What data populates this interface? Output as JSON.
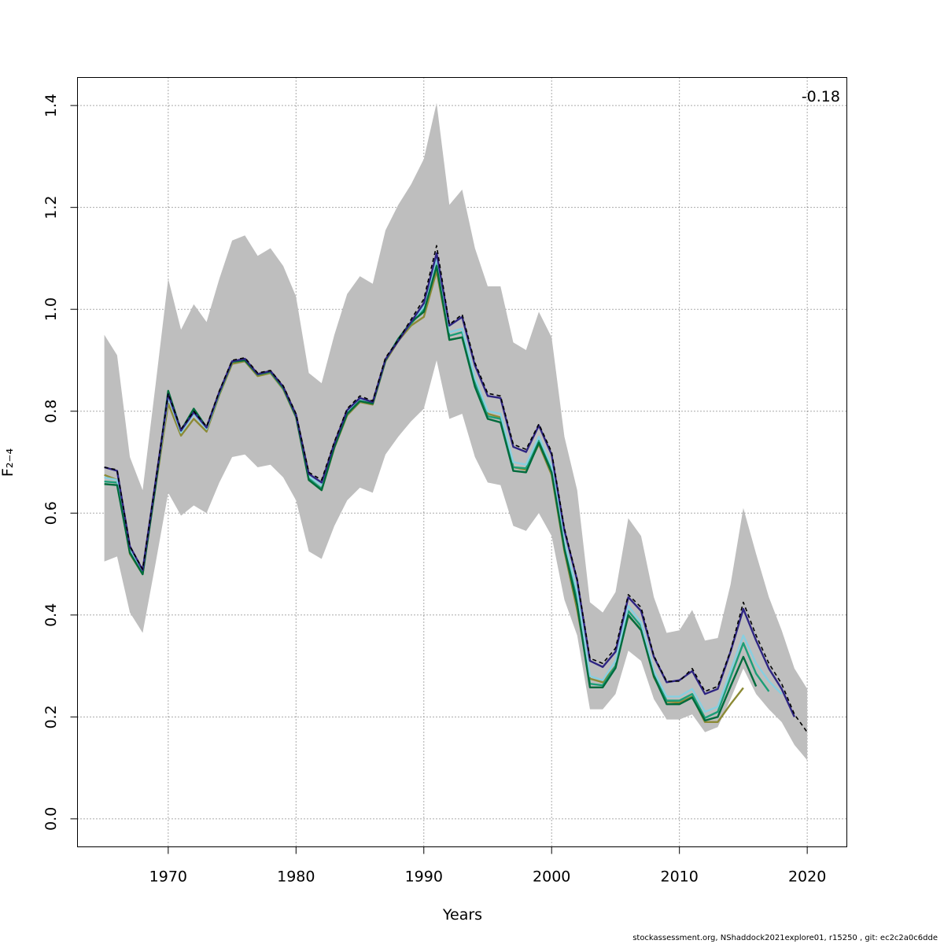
{
  "chart_data": {
    "type": "line",
    "xlabel": "Years",
    "ylabel": "F̅₂₋₄",
    "xlim": [
      1962.9,
      2023.1
    ],
    "ylim": [
      -0.055,
      1.455
    ],
    "x_ticks": [
      "1970",
      "1980",
      "1990",
      "2000",
      "2010",
      "2020"
    ],
    "y_ticks": [
      "0.0",
      "0.2",
      "0.4",
      "0.6",
      "0.8",
      "1.0",
      "1.2",
      "1.4"
    ],
    "grid": true,
    "annotation": "-0.18",
    "confidence_band": {
      "years": [
        1965,
        1966,
        1967,
        1968,
        1969,
        1970,
        1971,
        1972,
        1973,
        1974,
        1975,
        1976,
        1977,
        1978,
        1979,
        1980,
        1981,
        1982,
        1983,
        1984,
        1985,
        1986,
        1987,
        1988,
        1989,
        1990,
        1991,
        1992,
        1993,
        1994,
        1995,
        1996,
        1997,
        1998,
        1999,
        2000,
        2001,
        2002,
        2003,
        2004,
        2005,
        2006,
        2007,
        2008,
        2009,
        2010,
        2011,
        2012,
        2013,
        2014,
        2015,
        2016,
        2017,
        2018,
        2019,
        2020
      ],
      "lower": [
        0.505,
        0.515,
        0.405,
        0.365,
        0.5,
        0.64,
        0.595,
        0.615,
        0.6,
        0.66,
        0.71,
        0.715,
        0.69,
        0.695,
        0.67,
        0.625,
        0.525,
        0.51,
        0.575,
        0.625,
        0.65,
        0.64,
        0.715,
        0.75,
        0.78,
        0.805,
        0.9,
        0.785,
        0.795,
        0.71,
        0.66,
        0.655,
        0.575,
        0.565,
        0.6,
        0.555,
        0.43,
        0.36,
        0.215,
        0.215,
        0.245,
        0.33,
        0.31,
        0.235,
        0.195,
        0.195,
        0.205,
        0.17,
        0.18,
        0.235,
        0.295,
        0.245,
        0.215,
        0.19,
        0.145,
        0.115
      ],
      "upper": [
        0.95,
        0.91,
        0.71,
        0.645,
        0.85,
        1.06,
        0.96,
        1.01,
        0.975,
        1.06,
        1.135,
        1.145,
        1.105,
        1.12,
        1.085,
        1.025,
        0.875,
        0.855,
        0.95,
        1.03,
        1.065,
        1.05,
        1.155,
        1.205,
        1.245,
        1.295,
        1.405,
        1.205,
        1.235,
        1.12,
        1.045,
        1.045,
        0.935,
        0.92,
        0.995,
        0.945,
        0.75,
        0.645,
        0.425,
        0.405,
        0.445,
        0.59,
        0.555,
        0.435,
        0.365,
        0.37,
        0.41,
        0.35,
        0.355,
        0.46,
        0.61,
        0.52,
        0.435,
        0.37,
        0.295,
        0.255
      ]
    },
    "series": [
      {
        "color": "#000000",
        "dashed": true,
        "years_start": 1965,
        "values": [
          0.69,
          0.685,
          0.535,
          0.49,
          0.66,
          0.835,
          0.765,
          0.8,
          0.77,
          0.84,
          0.9,
          0.905,
          0.875,
          0.88,
          0.85,
          0.795,
          0.68,
          0.665,
          0.74,
          0.805,
          0.83,
          0.82,
          0.905,
          0.94,
          0.98,
          1.02,
          1.125,
          0.97,
          0.99,
          0.895,
          0.835,
          0.83,
          0.735,
          0.725,
          0.775,
          0.72,
          0.57,
          0.47,
          0.315,
          0.305,
          0.335,
          0.44,
          0.415,
          0.32,
          0.27,
          0.27,
          0.295,
          0.25,
          0.26,
          0.33,
          0.425,
          0.36,
          0.305,
          0.265,
          0.205,
          0.17
        ]
      },
      {
        "color": "#2e2482",
        "dashed": false,
        "years_start": 1965,
        "values": [
          0.69,
          0.683,
          0.535,
          0.488,
          0.66,
          0.833,
          0.762,
          0.798,
          0.768,
          0.838,
          0.898,
          0.903,
          0.873,
          0.879,
          0.848,
          0.793,
          0.677,
          0.66,
          0.737,
          0.802,
          0.826,
          0.818,
          0.902,
          0.938,
          0.975,
          1.012,
          1.11,
          0.968,
          0.985,
          0.89,
          0.83,
          0.826,
          0.73,
          0.72,
          0.772,
          0.715,
          0.566,
          0.468,
          0.31,
          0.298,
          0.328,
          0.435,
          0.408,
          0.318,
          0.268,
          0.272,
          0.29,
          0.245,
          0.255,
          0.328,
          0.412,
          0.35,
          0.295,
          0.255,
          0.2
        ]
      },
      {
        "color": "#1b9e77",
        "dashed": false,
        "years_start": 1965,
        "values": [
          0.662,
          0.66,
          0.525,
          0.485,
          0.655,
          0.83,
          0.76,
          0.8,
          0.765,
          0.835,
          0.897,
          0.9,
          0.872,
          0.877,
          0.845,
          0.79,
          0.668,
          0.648,
          0.73,
          0.795,
          0.82,
          0.815,
          0.9,
          0.942,
          0.972,
          1.0,
          1.095,
          0.948,
          0.955,
          0.858,
          0.79,
          0.785,
          0.69,
          0.688,
          0.742,
          0.685,
          0.535,
          0.43,
          0.265,
          0.262,
          0.3,
          0.408,
          0.378,
          0.282,
          0.232,
          0.232,
          0.245,
          0.198,
          0.21,
          0.278,
          0.345,
          0.285,
          0.25
        ]
      },
      {
        "color": "#88cfe0",
        "dashed": false,
        "years_start": 1965,
        "values": [
          0.67,
          0.665,
          0.53,
          0.487,
          0.657,
          0.828,
          0.758,
          0.795,
          0.765,
          0.836,
          0.897,
          0.901,
          0.872,
          0.878,
          0.846,
          0.79,
          0.672,
          0.655,
          0.733,
          0.798,
          0.823,
          0.816,
          0.9,
          0.942,
          0.975,
          1.005,
          1.1,
          0.955,
          0.962,
          0.865,
          0.8,
          0.795,
          0.7,
          0.695,
          0.75,
          0.692,
          0.545,
          0.445,
          0.28,
          0.272,
          0.31,
          0.418,
          0.385,
          0.29,
          0.24,
          0.24,
          0.255,
          0.21,
          0.22,
          0.29,
          0.36,
          0.305,
          0.27,
          0.245
        ]
      },
      {
        "color": "#8c8a35",
        "dashed": false,
        "years_start": 1965,
        "values": [
          0.675,
          0.665,
          0.52,
          0.48,
          0.65,
          0.815,
          0.752,
          0.785,
          0.76,
          0.832,
          0.893,
          0.898,
          0.869,
          0.875,
          0.843,
          0.788,
          0.665,
          0.645,
          0.728,
          0.792,
          0.818,
          0.813,
          0.898,
          0.938,
          0.968,
          0.985,
          1.075,
          0.94,
          0.945,
          0.85,
          0.795,
          0.788,
          0.69,
          0.685,
          0.735,
          0.675,
          0.525,
          0.41,
          0.275,
          0.268,
          0.3,
          0.398,
          0.372,
          0.278,
          0.23,
          0.228,
          0.24,
          0.19,
          0.19,
          0.225,
          0.257
        ]
      },
      {
        "color": "#006b3c",
        "dashed": false,
        "years_start": 1965,
        "values": [
          0.657,
          0.655,
          0.522,
          0.48,
          0.652,
          0.84,
          0.762,
          0.805,
          0.768,
          0.837,
          0.897,
          0.9,
          0.872,
          0.878,
          0.846,
          0.79,
          0.665,
          0.645,
          0.73,
          0.795,
          0.82,
          0.815,
          0.9,
          0.942,
          0.975,
          0.995,
          1.085,
          0.94,
          0.945,
          0.848,
          0.785,
          0.778,
          0.683,
          0.68,
          0.738,
          0.68,
          0.53,
          0.42,
          0.258,
          0.258,
          0.296,
          0.4,
          0.37,
          0.28,
          0.225,
          0.225,
          0.238,
          0.193,
          0.2,
          0.26,
          0.318,
          0.26
        ]
      }
    ]
  },
  "footer": {
    "credit": "stockassessment.org, NShaddock2021explore01, r15250 , git: ec2c2a0c6dde"
  }
}
